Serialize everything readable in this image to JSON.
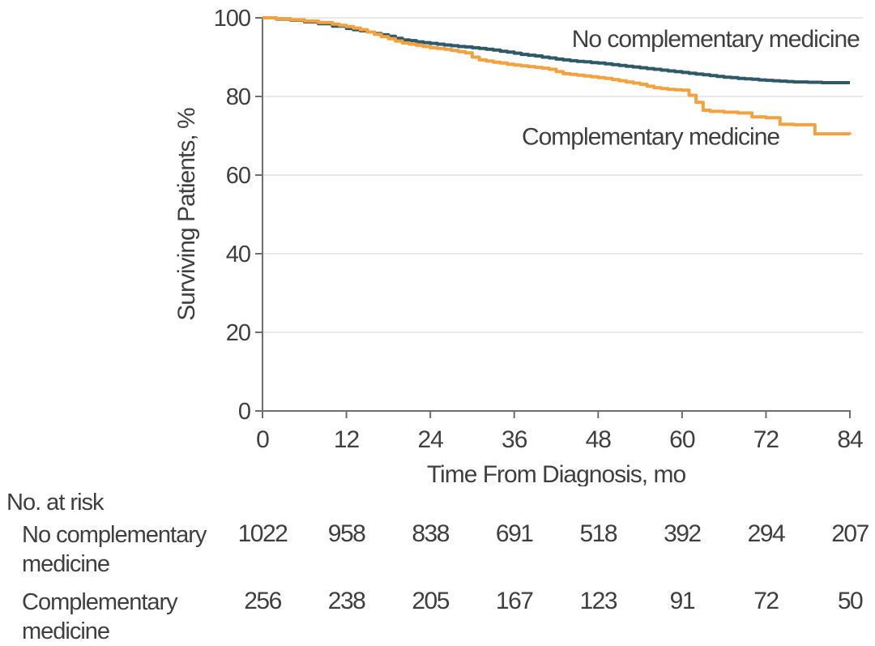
{
  "risk_table": {
    "title": "No. at risk",
    "time_points": [
      0,
      12,
      24,
      36,
      48,
      60,
      72,
      84
    ],
    "rows": [
      {
        "label": "No complementary medicine",
        "label_lines": [
          "No complementary",
          "medicine"
        ],
        "values": [
          "1022",
          "958",
          "838",
          "691",
          "518",
          "392",
          "294",
          "207"
        ]
      },
      {
        "label": "Complementary medicine",
        "label_lines": [
          "Complementary",
          "medicine"
        ],
        "values": [
          "256",
          "238",
          "205",
          "167",
          "123",
          "91",
          "72",
          "50"
        ]
      }
    ]
  },
  "chart_data": {
    "type": "line",
    "subtype": "kaplan_meier_step",
    "title": "",
    "xlabel": "Time From Diagnosis, mo",
    "ylabel": "Surviving Patients, %",
    "xlim": [
      0,
      84
    ],
    "ylim": [
      0,
      100
    ],
    "xticks": [
      0,
      12,
      24,
      36,
      48,
      60,
      72,
      84
    ],
    "yticks": [
      0,
      20,
      40,
      60,
      80,
      100
    ],
    "grid": {
      "horizontal": true,
      "color": "#E9E9E9"
    },
    "axis_color": "#6E6E6E",
    "text_color": "#3F3F3F",
    "legend_position": "inline-labels",
    "series": [
      {
        "name": "No complementary medicine",
        "color": "#2F5868",
        "label_pos": {
          "x": 64.8,
          "y": 94.6
        },
        "points": [
          [
            0,
            100
          ],
          [
            2,
            99.7
          ],
          [
            4,
            99.4
          ],
          [
            6,
            99.0
          ],
          [
            8,
            98.5
          ],
          [
            10,
            97.9
          ],
          [
            12,
            97.3
          ],
          [
            13,
            97.0
          ],
          [
            14,
            96.7
          ],
          [
            15,
            96.4
          ],
          [
            16,
            96.0
          ],
          [
            17,
            95.7
          ],
          [
            18,
            95.3
          ],
          [
            19,
            94.8
          ],
          [
            20,
            94.4
          ],
          [
            21,
            94.2
          ],
          [
            22,
            93.9
          ],
          [
            23,
            93.7
          ],
          [
            24,
            93.5
          ],
          [
            25,
            93.3
          ],
          [
            26,
            93.1
          ],
          [
            27,
            92.9
          ],
          [
            28,
            92.7
          ],
          [
            29,
            92.6
          ],
          [
            30,
            92.4
          ],
          [
            31,
            92.2
          ],
          [
            32,
            92.0
          ],
          [
            33,
            91.8
          ],
          [
            34,
            91.5
          ],
          [
            35,
            91.3
          ],
          [
            36,
            91.0
          ],
          [
            37,
            90.7
          ],
          [
            38,
            90.5
          ],
          [
            39,
            90.3
          ],
          [
            40,
            90.0
          ],
          [
            41,
            89.8
          ],
          [
            42,
            89.5
          ],
          [
            43,
            89.3
          ],
          [
            44,
            89.1
          ],
          [
            45,
            88.9
          ],
          [
            46,
            88.8
          ],
          [
            47,
            88.6
          ],
          [
            48,
            88.5
          ],
          [
            49,
            88.3
          ],
          [
            50,
            88.1
          ],
          [
            51,
            87.9
          ],
          [
            52,
            87.7
          ],
          [
            53,
            87.5
          ],
          [
            54,
            87.3
          ],
          [
            55,
            87.1
          ],
          [
            56,
            86.9
          ],
          [
            57,
            86.7
          ],
          [
            58,
            86.5
          ],
          [
            59,
            86.3
          ],
          [
            60,
            86.1
          ],
          [
            61,
            85.9
          ],
          [
            62,
            85.7
          ],
          [
            63,
            85.5
          ],
          [
            64,
            85.3
          ],
          [
            65,
            85.1
          ],
          [
            66,
            84.9
          ],
          [
            67,
            84.8
          ],
          [
            68,
            84.6
          ],
          [
            69,
            84.5
          ],
          [
            70,
            84.4
          ],
          [
            71,
            84.2
          ],
          [
            72,
            84.1
          ],
          [
            73,
            84.0
          ],
          [
            74,
            83.9
          ],
          [
            75,
            83.8
          ],
          [
            76,
            83.7
          ],
          [
            78,
            83.6
          ],
          [
            80,
            83.5
          ],
          [
            84,
            83.5
          ]
        ]
      },
      {
        "name": "Complementary medicine",
        "color": "#F2A23E",
        "label_pos": {
          "x": 55.5,
          "y": 69.8
        },
        "points": [
          [
            0,
            100
          ],
          [
            2,
            99.8
          ],
          [
            4,
            99.5
          ],
          [
            6,
            99.2
          ],
          [
            8,
            98.8
          ],
          [
            10,
            98.4
          ],
          [
            11,
            98.1
          ],
          [
            12,
            97.8
          ],
          [
            13,
            97.4
          ],
          [
            14,
            97.0
          ],
          [
            15,
            96.4
          ],
          [
            16,
            95.8
          ],
          [
            17,
            95.2
          ],
          [
            18,
            94.7
          ],
          [
            19,
            94.1
          ],
          [
            20,
            93.6
          ],
          [
            21,
            93.3
          ],
          [
            22,
            93.0
          ],
          [
            23,
            92.7
          ],
          [
            24,
            92.4
          ],
          [
            25,
            92.2
          ],
          [
            26,
            92.0
          ],
          [
            27,
            91.7
          ],
          [
            28,
            91.4
          ],
          [
            29,
            91.1
          ],
          [
            30,
            90.0
          ],
          [
            31,
            89.3
          ],
          [
            32,
            89.0
          ],
          [
            33,
            88.7
          ],
          [
            34,
            88.5
          ],
          [
            35,
            88.2
          ],
          [
            36,
            88.0
          ],
          [
            37,
            87.8
          ],
          [
            38,
            87.6
          ],
          [
            39,
            87.4
          ],
          [
            40,
            87.2
          ],
          [
            41,
            86.9
          ],
          [
            42,
            86.3
          ],
          [
            43,
            85.8
          ],
          [
            44,
            85.6
          ],
          [
            45,
            85.4
          ],
          [
            46,
            85.2
          ],
          [
            47,
            85.0
          ],
          [
            48,
            84.8
          ],
          [
            49,
            84.6
          ],
          [
            50,
            84.3
          ],
          [
            51,
            84.0
          ],
          [
            52,
            83.7
          ],
          [
            53,
            83.4
          ],
          [
            54,
            83.1
          ],
          [
            55,
            82.6
          ],
          [
            56,
            82.2
          ],
          [
            57,
            82.0
          ],
          [
            58,
            81.8
          ],
          [
            59,
            81.7
          ],
          [
            60,
            81.6
          ],
          [
            61,
            80.3
          ],
          [
            62,
            78.5
          ],
          [
            63,
            76.5
          ],
          [
            64,
            76.2
          ],
          [
            66,
            76.0
          ],
          [
            68,
            75.8
          ],
          [
            70,
            74.8
          ],
          [
            72,
            74.6
          ],
          [
            74,
            72.9
          ],
          [
            76,
            72.8
          ],
          [
            79,
            70.5
          ],
          [
            84,
            70.4
          ]
        ]
      }
    ]
  }
}
